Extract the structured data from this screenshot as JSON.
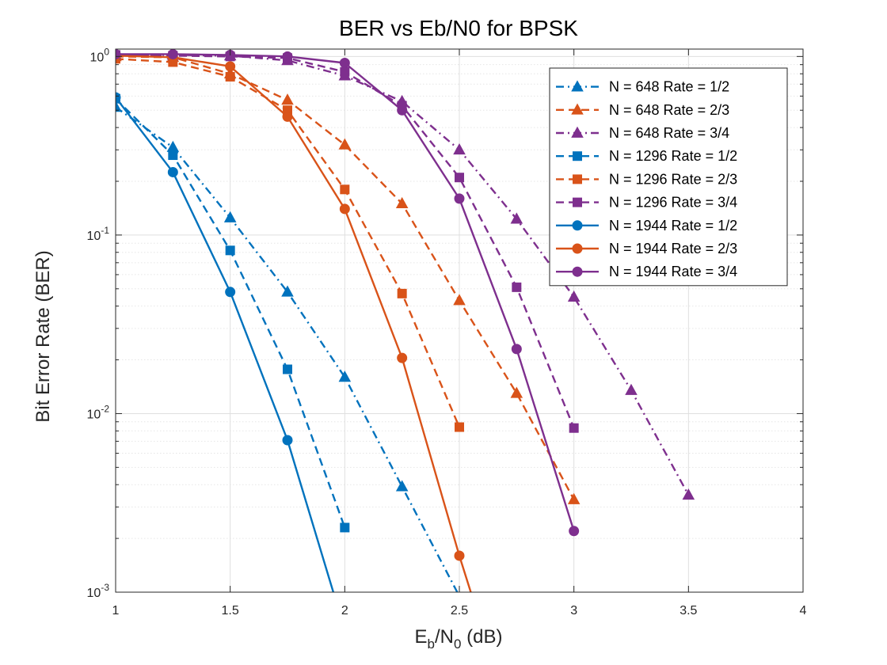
{
  "chart_data": {
    "type": "line",
    "title": "BER vs Eb/N0 for BPSK",
    "xlabel": {
      "main": "E",
      "sub1": "b",
      "mid": "/N",
      "sub2": "0",
      "tail": " (dB)"
    },
    "ylabel": "Bit Error Rate (BER)",
    "xlim": [
      1,
      4
    ],
    "ylim": [
      0.001,
      1.1
    ],
    "yscale": "log",
    "grid": true,
    "legend_position": "top-right",
    "x_ticks": [
      1,
      1.5,
      2,
      2.5,
      3,
      3.5,
      4
    ],
    "x_tick_labels": [
      "1",
      "1.5",
      "2",
      "2.5",
      "3",
      "3.5",
      "4"
    ],
    "y_ticks": [
      {
        "value": 0.001,
        "base": "10",
        "exp": "-3"
      },
      {
        "value": 0.01,
        "base": "10",
        "exp": "-2"
      },
      {
        "value": 0.1,
        "base": "10",
        "exp": "-1"
      },
      {
        "value": 1,
        "base": "10",
        "exp": "0"
      }
    ],
    "series": [
      {
        "name": "N = 648 Rate = 1/2",
        "color": "#0072BD",
        "dash": "dashdot",
        "marker": "triangle",
        "x": [
          1,
          1.25,
          1.5,
          1.75,
          2,
          2.25,
          2.5
        ],
        "y": [
          0.52,
          0.31,
          0.125,
          0.048,
          0.016,
          0.0039,
          0.00095
        ]
      },
      {
        "name": "N = 648 Rate = 2/3",
        "color": "#D95319",
        "dash": "dashed",
        "marker": "triangle",
        "x": [
          1,
          1.25,
          1.5,
          1.75,
          2,
          2.25,
          2.5,
          2.75,
          3
        ],
        "y": [
          1.0,
          0.99,
          0.8,
          0.57,
          0.32,
          0.15,
          0.043,
          0.013,
          0.0033
        ]
      },
      {
        "name": "N = 648 Rate = 3/4",
        "color": "#7E2F8E",
        "dash": "dashdot",
        "marker": "triangle",
        "x": [
          1,
          1.25,
          1.5,
          1.75,
          2,
          2.25,
          2.5,
          2.75,
          3,
          3.25,
          3.5
        ],
        "y": [
          1.02,
          1.02,
          1.01,
          0.95,
          0.78,
          0.56,
          0.3,
          0.123,
          0.045,
          0.0135,
          0.0035
        ]
      },
      {
        "name": "N = 1296 Rate = 1/2",
        "color": "#0072BD",
        "dash": "dashed",
        "marker": "square",
        "x": [
          1,
          1.25,
          1.5,
          1.75,
          2
        ],
        "y": [
          0.58,
          0.28,
          0.082,
          0.0177,
          0.0023
        ]
      },
      {
        "name": "N = 1296 Rate = 2/3",
        "color": "#D95319",
        "dash": "dashed",
        "marker": "square",
        "x": [
          1,
          1.25,
          1.5,
          1.75,
          2,
          2.25,
          2.5
        ],
        "y": [
          0.97,
          0.93,
          0.77,
          0.5,
          0.18,
          0.047,
          0.0084
        ]
      },
      {
        "name": "N = 1296 Rate = 3/4",
        "color": "#7E2F8E",
        "dash": "dashed",
        "marker": "square",
        "x": [
          1,
          1.25,
          1.5,
          1.75,
          2,
          2.25,
          2.5,
          2.75,
          3
        ],
        "y": [
          1.02,
          1.01,
          1.0,
          0.98,
          0.82,
          0.53,
          0.21,
          0.051,
          0.0083
        ]
      },
      {
        "name": "N = 1944 Rate = 1/2",
        "color": "#0072BD",
        "dash": "solid",
        "marker": "circle",
        "x": [
          1,
          1.25,
          1.5,
          1.75,
          1.95
        ],
        "y": [
          0.59,
          0.225,
          0.048,
          0.0071,
          0.001
        ]
      },
      {
        "name": "N = 1944 Rate = 2/3",
        "color": "#D95319",
        "dash": "solid",
        "marker": "circle",
        "x": [
          1,
          1.25,
          1.5,
          1.75,
          2,
          2.25,
          2.5,
          2.55
        ],
        "y": [
          1.01,
          0.99,
          0.88,
          0.46,
          0.14,
          0.0205,
          0.0016,
          0.001
        ]
      },
      {
        "name": "N = 1944 Rate = 3/4",
        "color": "#7E2F8E",
        "dash": "solid",
        "marker": "circle",
        "x": [
          1,
          1.25,
          1.5,
          1.75,
          2,
          2.25,
          2.5,
          2.75,
          3
        ],
        "y": [
          1.03,
          1.03,
          1.02,
          1.0,
          0.92,
          0.5,
          0.16,
          0.023,
          0.0022
        ]
      }
    ]
  }
}
